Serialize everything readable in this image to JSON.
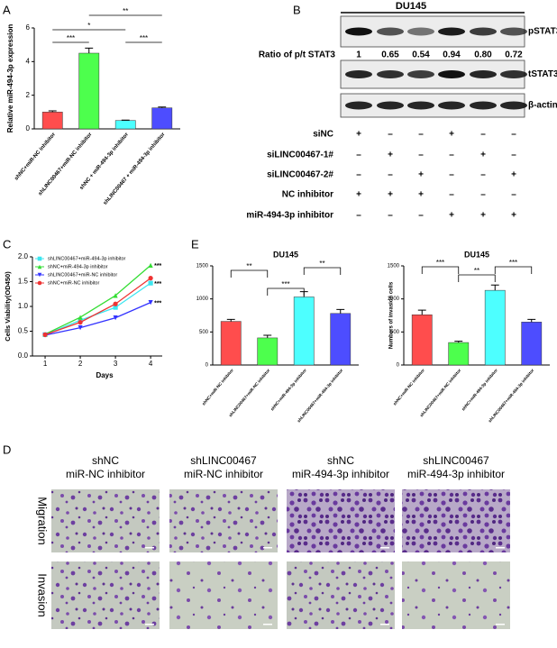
{
  "panel_labels": [
    "A",
    "B",
    "C",
    "D",
    "E"
  ],
  "chart_data": [
    {
      "type": "bar",
      "ylabel": "Relative miR-494-3p expression",
      "categories": [
        "shNC+miR-NC inhibitor",
        "shLINC00467+miR-NC inhibitor",
        "shNC + miR-494-3p inhibitor",
        "shLINC00467 + miR-494-3p inhibitor"
      ],
      "values": [
        1.0,
        4.5,
        0.5,
        1.25
      ],
      "errors": [
        0.07,
        0.3,
        0.02,
        0.05
      ],
      "colors": [
        "#ff4d4d",
        "#4dff4d",
        "#4dffff",
        "#4d4dff"
      ],
      "ylim": [
        0,
        6
      ],
      "yticks": [
        0,
        2,
        4,
        6
      ],
      "annotations": [
        "*",
        "**",
        "***",
        "***"
      ]
    },
    {
      "type": "line",
      "xlabel": "Days",
      "ylabel": "Cells Viability(OD450)",
      "x": [
        1,
        2,
        3,
        4
      ],
      "xlim": [
        0.64,
        4.33
      ],
      "xticks": [
        1,
        2,
        3,
        4
      ],
      "ylim": [
        0,
        2.0
      ],
      "yticks": [
        {
          "value": 0,
          "label": "0.0"
        },
        {
          "value": 0.5,
          "label": "0.5"
        },
        {
          "value": 1.0,
          "label": "1.0"
        },
        {
          "value": 1.5,
          "label": "1.5"
        },
        {
          "value": 2.0,
          "label": "2.0"
        }
      ],
      "series": [
        {
          "name": "shLINC00467+miR-494-3p inhibitor",
          "color": "#3ce6f0",
          "marker": "square",
          "values": [
            0.43,
            0.72,
            0.98,
            1.47
          ]
        },
        {
          "name": "shNC+miR-494-3p inhibitor",
          "color": "#33dd33",
          "marker": "triangle-up",
          "values": [
            0.44,
            0.78,
            1.22,
            1.83
          ]
        },
        {
          "name": "shLINC00467+miR-NC inhibitor",
          "color": "#3333ff",
          "marker": "triangle-down",
          "values": [
            0.42,
            0.57,
            0.77,
            1.08
          ]
        },
        {
          "name": "shNC+miR-NC inhibitor",
          "color": "#ee3333",
          "marker": "circle",
          "values": [
            0.43,
            0.68,
            1.05,
            1.57
          ]
        }
      ],
      "annotations": [
        "***",
        "***",
        "***"
      ]
    },
    {
      "type": "bar",
      "title": "DU145",
      "categories": [
        "shNC+miR-NC inhibitor",
        "shLINC00467+miR-NC inhibitor",
        "shNC+miR-494-3p inhibitor",
        "shLINC00467+miR-494-3p inhibitor"
      ],
      "values": [
        660,
        410,
        1030,
        780
      ],
      "errors": [
        30,
        40,
        80,
        60
      ],
      "colors": [
        "#ff4d4d",
        "#4dff4d",
        "#4dffff",
        "#4d4dff"
      ],
      "ylim": [
        0,
        1500
      ],
      "yticks": [
        0,
        500,
        1000,
        1500
      ],
      "annotations": [
        "**",
        "***",
        "**"
      ]
    },
    {
      "type": "bar",
      "title": "DU145",
      "ylabel": "Numbers of invasion cells",
      "categories": [
        "shNC+miR-NC inhibitor",
        "shLINC00467+miR-NC inhibitor",
        "shNC+miR-494-3p inhibitor",
        "shLINC00467+miR-494-3p inhibitor"
      ],
      "values": [
        760,
        340,
        1130,
        650
      ],
      "errors": [
        70,
        20,
        80,
        40
      ],
      "colors": [
        "#ff4d4d",
        "#4dff4d",
        "#4dffff",
        "#4d4dff"
      ],
      "ylim": [
        0,
        1500
      ],
      "yticks": [
        0,
        500,
        1000,
        1500
      ],
      "annotations": [
        "***",
        "**",
        "***"
      ]
    }
  ],
  "blot": {
    "cell_line": "DU145",
    "bands": [
      "pSTAT3",
      "tSTAT3",
      "β-actin"
    ],
    "ratio_label": "Ratio of p/t STAT3",
    "ratios": [
      "1",
      "0.65",
      "0.54",
      "0.94",
      "0.80",
      "0.72"
    ],
    "conditions": [
      {
        "label": "siNC",
        "signs": [
          "+",
          "–",
          "–",
          "+",
          "–",
          "–"
        ]
      },
      {
        "label": "siLINC00467-1#",
        "signs": [
          "–",
          "+",
          "–",
          "–",
          "+",
          "–"
        ]
      },
      {
        "label": "siLINC00467-2#",
        "signs": [
          "–",
          "–",
          "+",
          "–",
          "–",
          "+"
        ]
      },
      {
        "label": "NC inhibitor",
        "signs": [
          "+",
          "+",
          "+",
          "–",
          "–",
          "–"
        ]
      },
      {
        "label": "miR-494-3p inhibitor",
        "signs": [
          "–",
          "–",
          "–",
          "+",
          "+",
          "+"
        ]
      }
    ]
  },
  "images": {
    "columns": [
      {
        "line1": "shNC",
        "line2": "miR-NC inhibitor"
      },
      {
        "line1": "shLINC00467",
        "line2": "miR-NC inhibitor"
      },
      {
        "line1": "shNC",
        "line2": "miR-494-3p inhibitor"
      },
      {
        "line1": "shLINC00467",
        "line2": "miR-494-3p inhibitor"
      }
    ],
    "rows": [
      "Migration",
      "Invasion"
    ]
  }
}
